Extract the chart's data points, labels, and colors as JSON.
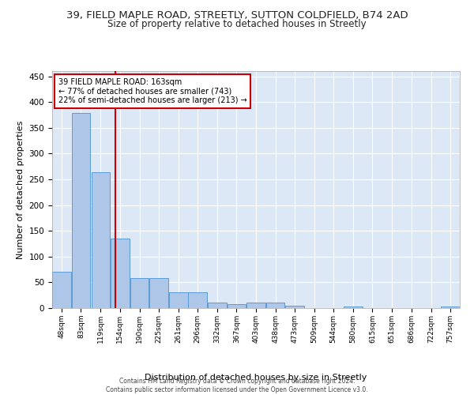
{
  "title_line1": "39, FIELD MAPLE ROAD, STREETLY, SUTTON COLDFIELD, B74 2AD",
  "title_line2": "Size of property relative to detached houses in Streetly",
  "xlabel": "Distribution of detached houses by size in Streetly",
  "ylabel": "Number of detached properties",
  "footer_line1": "Contains HM Land Registry data © Crown copyright and database right 2024.",
  "footer_line2": "Contains public sector information licensed under the Open Government Licence v3.0.",
  "annotation_line1": "39 FIELD MAPLE ROAD: 163sqm",
  "annotation_line2": "← 77% of detached houses are smaller (743)",
  "annotation_line3": "22% of semi-detached houses are larger (213) →",
  "bar_edges": [
    48,
    83,
    119,
    154,
    190,
    225,
    261,
    296,
    332,
    367,
    403,
    438,
    473,
    509,
    544,
    580,
    615,
    651,
    686,
    722,
    757
  ],
  "bar_heights": [
    70,
    378,
    263,
    135,
    59,
    59,
    30,
    30,
    10,
    8,
    10,
    10,
    5,
    0,
    0,
    3,
    0,
    0,
    0,
    0,
    3
  ],
  "bar_color": "#aec6e8",
  "bar_edge_color": "#5b9bd5",
  "vline_x": 163,
  "vline_color": "#cc0000",
  "annotation_box_color": "#cc0000",
  "ylim": [
    0,
    460
  ],
  "yticks": [
    0,
    50,
    100,
    150,
    200,
    250,
    300,
    350,
    400,
    450
  ],
  "bg_color": "#dce8f5",
  "grid_color": "#ffffff",
  "title1_fontsize": 9.5,
  "title2_fontsize": 8.5,
  "xlabel_fontsize": 8,
  "ylabel_fontsize": 8,
  "fig_bg_color": "#ffffff"
}
